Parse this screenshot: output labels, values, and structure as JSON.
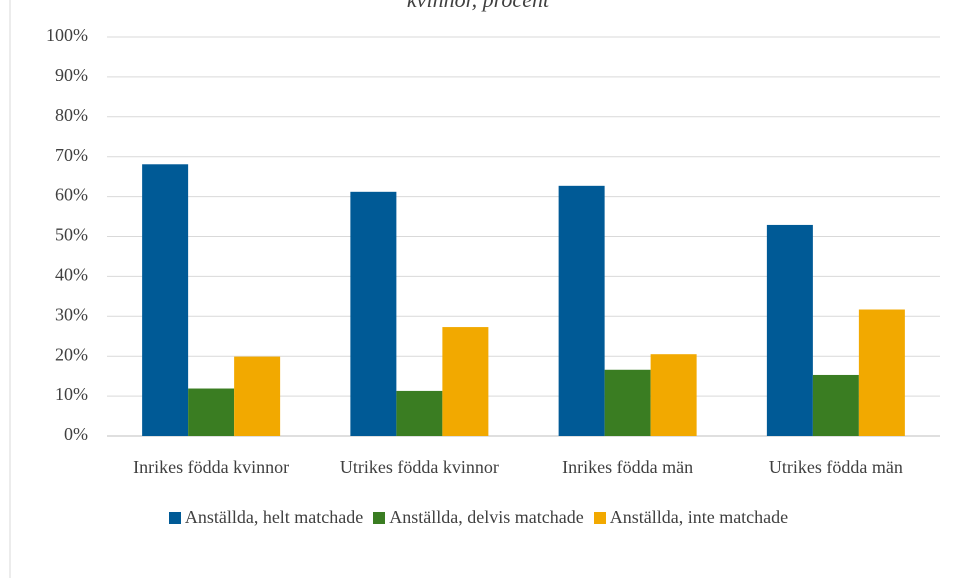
{
  "chart_data": {
    "type": "bar",
    "title": "kvinnor, procent",
    "categories": [
      "Inrikes födda kvinnor",
      "Utrikes födda kvinnor",
      "Inrikes födda män",
      "Utrikes födda män"
    ],
    "series": [
      {
        "name": "Anställda, helt matchade",
        "color": "#005a96",
        "values": [
          68.1,
          61.2,
          62.7,
          52.9
        ]
      },
      {
        "name": "Anställda, delvis matchade",
        "color": "#3a7d22",
        "values": [
          11.9,
          11.3,
          16.6,
          15.3
        ]
      },
      {
        "name": "Anställda, inte matchade",
        "color": "#f2a900",
        "values": [
          19.9,
          27.3,
          20.5,
          31.7
        ]
      }
    ],
    "ylim": [
      0,
      100
    ],
    "yticks": [
      {
        "value": 0,
        "label": "0%"
      },
      {
        "value": 10,
        "label": "10%"
      },
      {
        "value": 20,
        "label": "20%"
      },
      {
        "value": 30,
        "label": "30%"
      },
      {
        "value": 40,
        "label": "40%"
      },
      {
        "value": 50,
        "label": "50%"
      },
      {
        "value": 60,
        "label": "60%"
      },
      {
        "value": 70,
        "label": "70%"
      },
      {
        "value": 80,
        "label": "80%"
      },
      {
        "value": 90,
        "label": "90%"
      },
      {
        "value": 100,
        "label": "100%"
      }
    ],
    "grid": true,
    "legend": "bottom"
  }
}
